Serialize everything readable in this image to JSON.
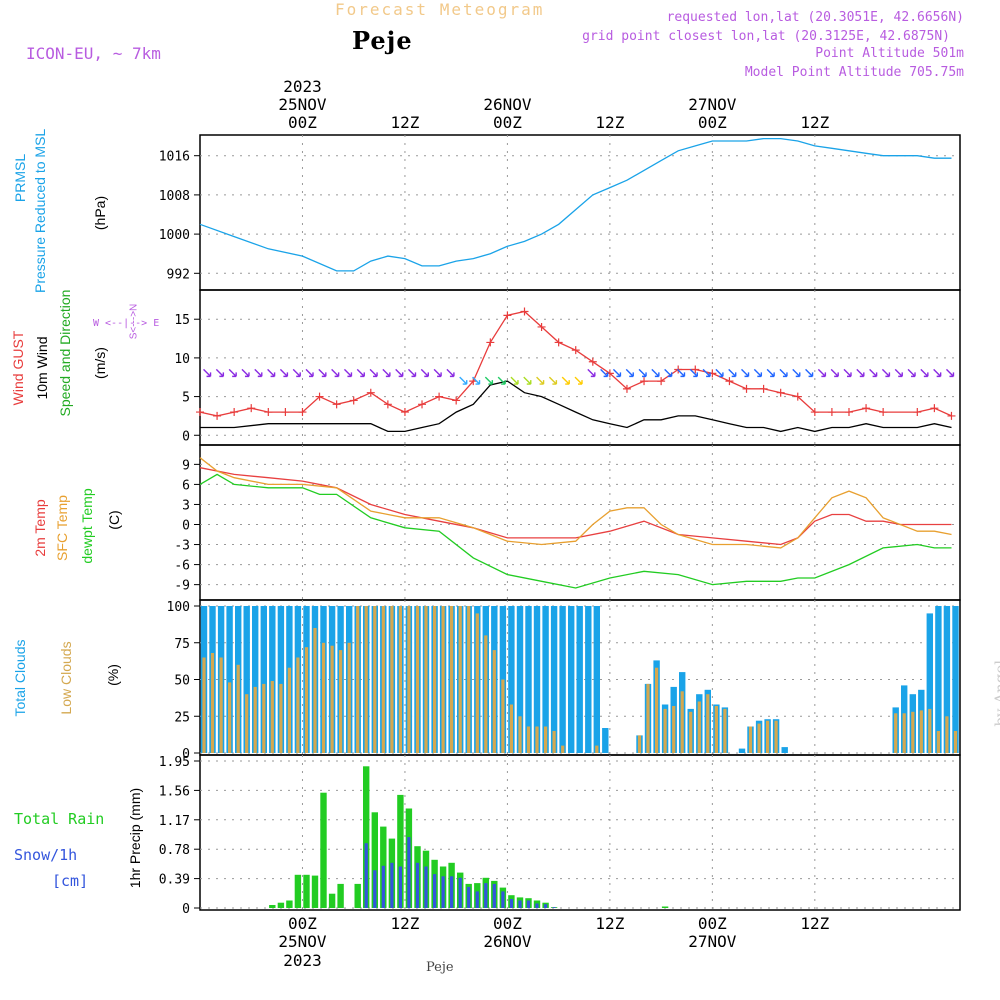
{
  "header": {
    "title": "Forecast Meteogram",
    "station": "Peje",
    "model": "ICON-EU, ~ 7km",
    "requested": "requested lon,lat (20.3051E, 42.6656N)",
    "gridpoint": "grid point closest lon,lat (20.3125E, 42.6875N)",
    "altitude": "Point Altitude 501m",
    "model_altitude": "Model Point Altitude 705.75m"
  },
  "footer_station": "Peje",
  "watermark": "by Angel",
  "colors": {
    "pressure": "#1aa3e8",
    "gust": "#e83c3c",
    "wind": "#000000",
    "direction": "#22bb22",
    "t2m": "#e84040",
    "sfc": "#e8a030",
    "dewpt": "#22cc22",
    "total_clouds": "#1aa3e8",
    "low_clouds": "#d4a850",
    "rain": "#22cc22",
    "snow": "#3355dd",
    "compass": "#b85ce0"
  },
  "top_axis": [
    {
      "line1": "2023",
      "line2": "25NOV",
      "line3": "00Z"
    },
    {
      "line1": "",
      "line2": "",
      "line3": "12Z"
    },
    {
      "line1": "",
      "line2": "26NOV",
      "line3": "00Z"
    },
    {
      "line1": "",
      "line2": "",
      "line3": "12Z"
    },
    {
      "line1": "",
      "line2": "27NOV",
      "line3": "00Z"
    },
    {
      "line1": "",
      "line2": "",
      "line3": "12Z"
    }
  ],
  "bottom_axis": [
    {
      "line1": "00Z",
      "line2": "25NOV",
      "line3": "2023"
    },
    {
      "line1": "12Z",
      "line2": "",
      "line3": ""
    },
    {
      "line1": "00Z",
      "line2": "26NOV",
      "line3": ""
    },
    {
      "line1": "12Z",
      "line2": "",
      "line3": ""
    },
    {
      "line1": "00Z",
      "line2": "27NOV",
      "line3": ""
    },
    {
      "line1": "12Z",
      "line2": "",
      "line3": ""
    }
  ],
  "axis_labels": {
    "pressure": [
      "PRMSL",
      "Pressure Reduced to MSL",
      "(hPa)"
    ],
    "wind": [
      "Wind GUST",
      "10m Wind",
      "Speed and Direction",
      "(m/s)"
    ],
    "compass": {
      "n": "N",
      "s": "S",
      "w": "W",
      "e": "E",
      "ns": "S<--->N",
      "we": "W <--|--> E"
    },
    "temp": [
      "2m Temp",
      "SFC Temp",
      "dewpt Temp",
      "(C)"
    ],
    "clouds": [
      "Total Clouds",
      "Low Clouds",
      "(%)"
    ],
    "precip_left": [
      "Total  Rain",
      "Snow/1h",
      "[cm]"
    ],
    "precip": "1hr Precip (mm)"
  },
  "chart_data": [
    {
      "panel": "pressure",
      "type": "line",
      "title": "PRMSL Pressure Reduced to MSL",
      "ylabel": "(hPa)",
      "x_hours_from": -12,
      "ylim": [
        989,
        1019
      ],
      "yticks": [
        992,
        1000,
        1008,
        1016
      ],
      "series": [
        {
          "name": "PRMSL",
          "x": [
            -12,
            -8,
            -4,
            0,
            4,
            6,
            8,
            10,
            12,
            14,
            16,
            18,
            20,
            22,
            24,
            26,
            28,
            30,
            32,
            34,
            36,
            38,
            40,
            42,
            44,
            46,
            48,
            50,
            52,
            54,
            56,
            58,
            60,
            62,
            64,
            66,
            68,
            72,
            74,
            76
          ],
          "values": [
            1002,
            999.5,
            997,
            995.5,
            992.5,
            992.5,
            994.5,
            995.5,
            995,
            993.5,
            993.5,
            994.5,
            995,
            996,
            997.5,
            998.5,
            1000,
            1002,
            1005,
            1008,
            1009.5,
            1011,
            1013,
            1015,
            1017,
            1018,
            1019,
            1019,
            1019,
            1019.5,
            1019.5,
            1019,
            1018,
            1017.5,
            1017,
            1016.5,
            1016,
            1016,
            1015.5,
            1015.5
          ]
        }
      ]
    },
    {
      "panel": "wind",
      "type": "line",
      "title": "Wind GUST / 10m Wind Speed and Direction",
      "ylabel": "(m/s)",
      "ylim": [
        -1,
        18
      ],
      "yticks": [
        0,
        5,
        10,
        15
      ],
      "series": [
        {
          "name": "Wind GUST",
          "x": [
            -12,
            -10,
            -8,
            -6,
            -4,
            -2,
            0,
            2,
            4,
            6,
            8,
            10,
            12,
            14,
            16,
            18,
            20,
            22,
            24,
            26,
            28,
            30,
            32,
            34,
            36,
            38,
            40,
            42,
            44,
            46,
            48,
            50,
            52,
            54,
            56,
            58,
            60,
            62,
            64,
            66,
            68,
            72,
            74,
            76
          ],
          "values": [
            3,
            2.5,
            3,
            3.5,
            3,
            3,
            3,
            5,
            4,
            4.5,
            5.5,
            4,
            3,
            4,
            5,
            4.5,
            7,
            12,
            15.5,
            16,
            14,
            12,
            11,
            9.5,
            8,
            6,
            7,
            7,
            8.5,
            8.5,
            8,
            7,
            6,
            6,
            5.5,
            5,
            3,
            3,
            3,
            3.5,
            3,
            3,
            3.5,
            2.5
          ]
        },
        {
          "name": "10m Wind",
          "x": [
            -12,
            -8,
            -4,
            0,
            4,
            8,
            10,
            12,
            14,
            16,
            18,
            20,
            22,
            24,
            26,
            28,
            30,
            32,
            34,
            36,
            38,
            40,
            42,
            44,
            46,
            48,
            50,
            52,
            54,
            56,
            58,
            60,
            62,
            64,
            66,
            68,
            72,
            74,
            76
          ],
          "values": [
            1,
            1,
            1.5,
            1.5,
            1.5,
            1.5,
            0.5,
            0.5,
            1,
            1.5,
            3,
            4,
            6.5,
            7,
            5.5,
            5,
            4,
            3,
            2,
            1.5,
            1,
            2,
            2,
            2.5,
            2.5,
            2,
            1.5,
            1,
            1,
            0.5,
            1,
            0.5,
            1,
            1,
            1.5,
            1,
            1,
            1.5,
            1
          ]
        }
      ]
    },
    {
      "panel": "temperature",
      "type": "line",
      "title": "2m Temp / SFC Temp / dewpt Temp",
      "ylabel": "(C)",
      "ylim": [
        -11,
        11
      ],
      "yticks": [
        -9,
        -6,
        -3,
        0,
        3,
        6,
        9
      ],
      "series": [
        {
          "name": "2m Temp",
          "x": [
            -12,
            -8,
            -4,
            0,
            4,
            8,
            12,
            16,
            20,
            24,
            28,
            32,
            36,
            40,
            44,
            48,
            52,
            56,
            58,
            60,
            62,
            64,
            66,
            68,
            70,
            72,
            74,
            76
          ],
          "values": [
            8.5,
            7.5,
            7,
            6.5,
            5.5,
            3,
            1.5,
            0.5,
            -0.5,
            -2,
            -2,
            -2,
            -1,
            0.5,
            -1.5,
            -2,
            -2.5,
            -3,
            -2,
            0.5,
            1.5,
            1.5,
            0.5,
            0.5,
            0,
            0,
            0,
            0
          ]
        },
        {
          "name": "SFC Temp",
          "x": [
            -12,
            -10,
            -8,
            -4,
            0,
            4,
            8,
            12,
            16,
            20,
            24,
            28,
            32,
            34,
            36,
            38,
            40,
            42,
            44,
            48,
            52,
            56,
            58,
            60,
            62,
            64,
            66,
            68,
            72,
            74,
            76
          ],
          "values": [
            10,
            8,
            7,
            6,
            6,
            5.5,
            2,
            1,
            1,
            -0.5,
            -2.5,
            -3,
            -2.5,
            0,
            2,
            2.5,
            2.5,
            0,
            -1.5,
            -3,
            -3,
            -3.5,
            -2,
            1,
            4,
            5,
            4,
            1,
            -1,
            -1,
            -1.5
          ]
        },
        {
          "name": "dewpt Temp",
          "x": [
            -12,
            -10,
            -8,
            -4,
            0,
            2,
            4,
            8,
            12,
            16,
            20,
            24,
            28,
            32,
            36,
            40,
            44,
            48,
            52,
            56,
            58,
            60,
            64,
            68,
            72,
            74,
            76
          ],
          "values": [
            6,
            7.5,
            6,
            5.5,
            5.5,
            4.5,
            4.5,
            1,
            -0.5,
            -1,
            -5,
            -7.5,
            -8.5,
            -9.5,
            -8,
            -7,
            -7.5,
            -9,
            -8.5,
            -8.5,
            -8,
            -8,
            -6,
            -3.5,
            -3,
            -3.5,
            -3.5
          ]
        }
      ]
    },
    {
      "panel": "clouds",
      "type": "bar",
      "title": "Total Clouds / Low Clouds",
      "ylabel": "(%)",
      "ylim": [
        0,
        100
      ],
      "yticks": [
        0,
        25,
        50,
        75,
        100
      ],
      "x_start": -12,
      "x_step": 1,
      "series": [
        {
          "name": "Total Clouds",
          "values": [
            100,
            100,
            100,
            100,
            100,
            100,
            100,
            100,
            100,
            100,
            100,
            100,
            100,
            100,
            100,
            100,
            100,
            100,
            100,
            100,
            100,
            100,
            100,
            100,
            100,
            100,
            100,
            100,
            100,
            100,
            100,
            100,
            100,
            100,
            100,
            100,
            100,
            100,
            100,
            100,
            100,
            100,
            100,
            100,
            100,
            100,
            100,
            17,
            0,
            0,
            0,
            12,
            47,
            63,
            33,
            45,
            55,
            30,
            40,
            43,
            33,
            31,
            0,
            3,
            18,
            22,
            23,
            23,
            4,
            0,
            0,
            0,
            0,
            0,
            0,
            0,
            0,
            0,
            0,
            0,
            0,
            31,
            46,
            40,
            43,
            95,
            100,
            100,
            100
          ]
        },
        {
          "name": "Low Clouds",
          "values": [
            65,
            68,
            65,
            48,
            60,
            40,
            45,
            47,
            49,
            47,
            58,
            65,
            72,
            85,
            75,
            73,
            70,
            75,
            100,
            100,
            100,
            100,
            100,
            100,
            100,
            100,
            100,
            100,
            100,
            100,
            100,
            100,
            95,
            80,
            70,
            50,
            33,
            25,
            18,
            18,
            18,
            15,
            5,
            0,
            0,
            0,
            5,
            0,
            0,
            0,
            0,
            12,
            47,
            58,
            30,
            32,
            42,
            28,
            35,
            40,
            32,
            30,
            0,
            0,
            18,
            20,
            22,
            22,
            0,
            0,
            0,
            0,
            0,
            0,
            0,
            0,
            0,
            0,
            0,
            0,
            0,
            27,
            27,
            28,
            29,
            30,
            15,
            25,
            15
          ]
        }
      ]
    },
    {
      "panel": "precip",
      "type": "bar",
      "title": "1hr Precip (mm)",
      "ylabel": "1hr Precip (mm)",
      "ylim": [
        0,
        1.95
      ],
      "yticks": [
        0,
        0.39,
        0.78,
        1.17,
        1.56,
        1.95
      ],
      "x_start": -12,
      "x_step": 1,
      "series": [
        {
          "name": "Total Rain",
          "values": [
            0,
            0,
            0,
            0,
            0,
            0,
            0,
            0,
            0.04,
            0.07,
            0.1,
            0.44,
            0.44,
            0.43,
            1.53,
            0.19,
            0.32,
            0,
            0.32,
            1.88,
            1.27,
            1.08,
            0.92,
            1.5,
            1.32,
            0.82,
            0.76,
            0.64,
            0.55,
            0.6,
            0.47,
            0.32,
            0.33,
            0.4,
            0.36,
            0.27,
            0.17,
            0.14,
            0.13,
            0.1,
            0.07,
            0.01,
            0,
            0,
            0,
            0,
            0,
            0,
            0,
            0,
            0,
            0,
            0,
            0,
            0.02,
            0,
            0,
            0,
            0,
            0,
            0,
            0,
            0,
            0,
            0,
            0,
            0,
            0,
            0,
            0,
            0,
            0,
            0,
            0,
            0,
            0,
            0,
            0,
            0,
            0,
            0,
            0,
            0,
            0,
            0,
            0,
            0,
            0,
            0
          ]
        },
        {
          "name": "Snow/1h",
          "values": [
            0,
            0,
            0,
            0,
            0,
            0,
            0,
            0,
            0,
            0,
            0,
            0,
            0,
            0,
            0,
            0,
            0,
            0,
            0,
            0.86,
            0.5,
            0.56,
            0.6,
            0.55,
            0.94,
            0.6,
            0.55,
            0.45,
            0.42,
            0.42,
            0.4,
            0.28,
            0.22,
            0.33,
            0.32,
            0.22,
            0.12,
            0.1,
            0.1,
            0.06,
            0.05,
            0.01,
            0,
            0,
            0,
            0,
            0,
            0,
            0,
            0,
            0,
            0,
            0,
            0,
            0,
            0,
            0,
            0,
            0,
            0,
            0,
            0,
            0,
            0,
            0,
            0,
            0,
            0,
            0,
            0,
            0,
            0,
            0,
            0,
            0,
            0,
            0,
            0,
            0,
            0,
            0,
            0,
            0,
            0,
            0,
            0,
            0,
            0,
            0
          ]
        }
      ]
    }
  ]
}
